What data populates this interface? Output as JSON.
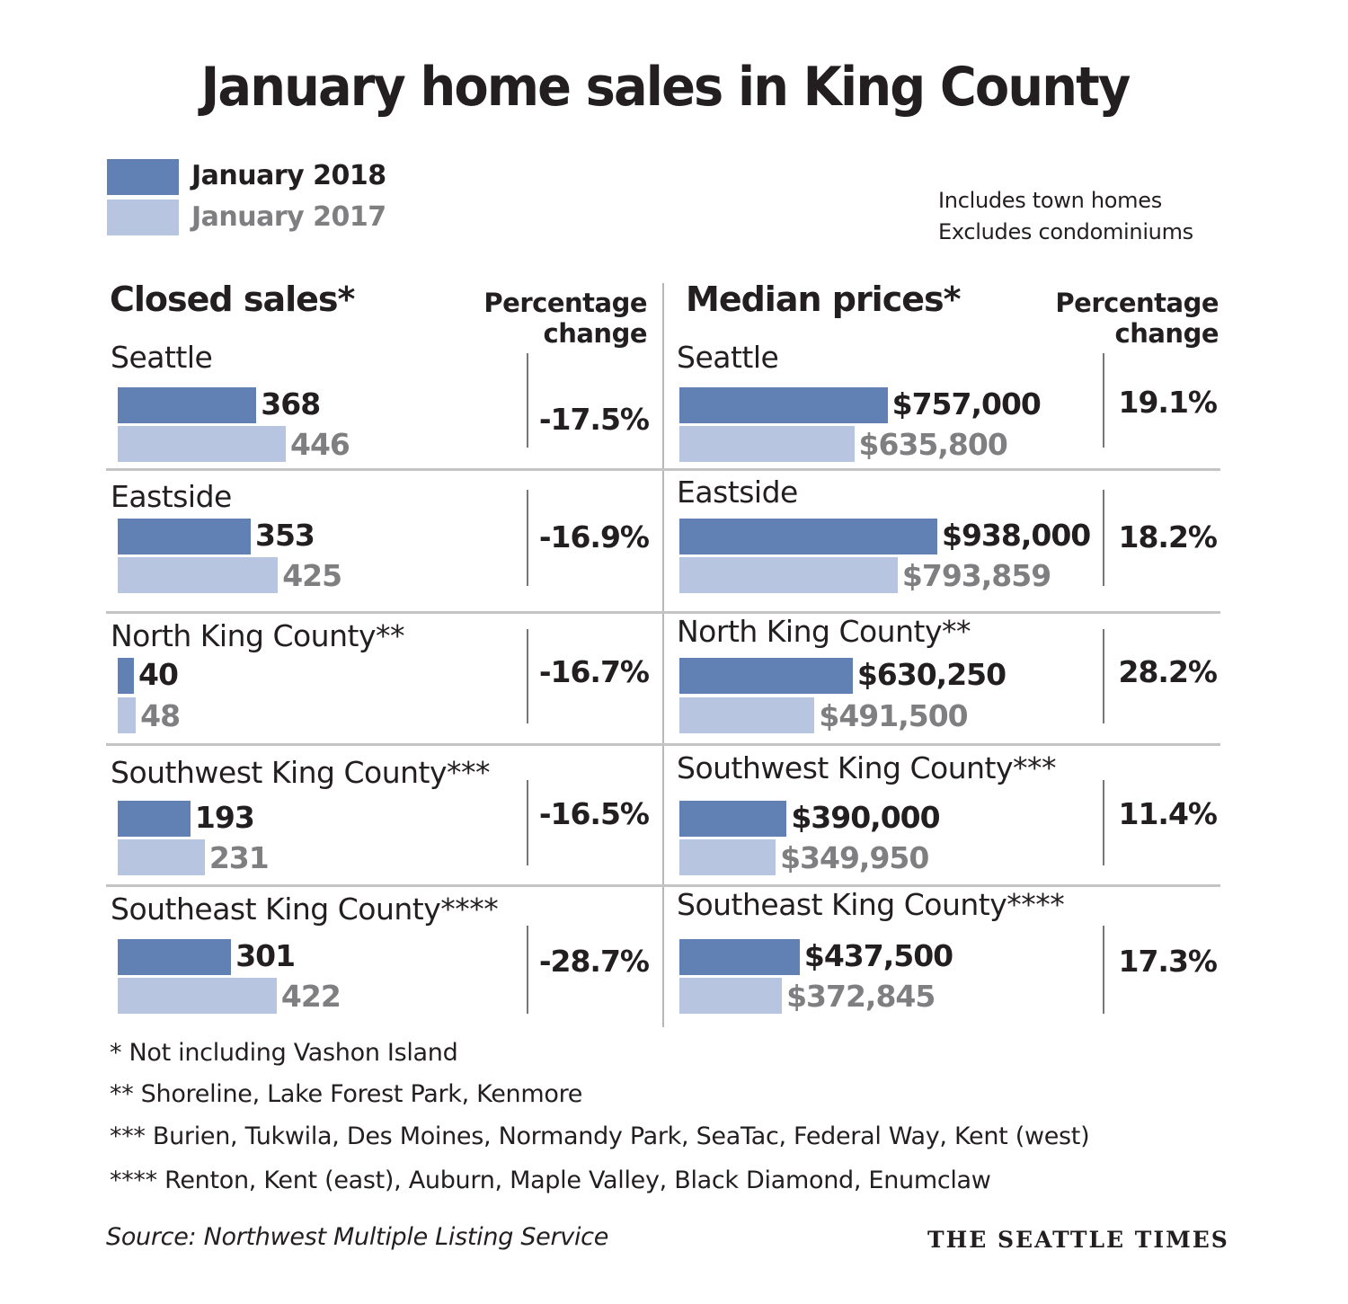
{
  "title": "January home sales in King County",
  "legend": {
    "items": [
      {
        "label": "January 2018",
        "color": "#6180b4"
      },
      {
        "label": "January 2017",
        "color": "#b7c5e1"
      }
    ]
  },
  "notes": [
    "Includes town homes",
    "Excludes condominiums"
  ],
  "panels": {
    "left": {
      "title": "Closed sales*",
      "pct_header_line1": "Percentage",
      "pct_header_line2": "change"
    },
    "right": {
      "title": "Median prices*",
      "pct_header_line1": "Percentage",
      "pct_header_line2": "change"
    }
  },
  "footnotes": [
    "* Not including Vashon Island",
    "**  Shoreline, Lake Forest Park, Kenmore",
    "*** Burien, Tukwila, Des Moines, Normandy Park, SeaTac, Federal Way, Kent (west)",
    "**** Renton, Kent (east), Auburn, Maple Valley, Black Diamond, Enumclaw"
  ],
  "source": "Source: Northwest Multiple Listing Service",
  "brand": "THE SEATTLE TIMES",
  "chart_data": [
    {
      "type": "bar",
      "orientation": "horizontal",
      "title": "Closed sales*",
      "categories": [
        "Seattle",
        "Eastside",
        "North King County**",
        "Southwest King County***",
        "Southeast King County****"
      ],
      "series": [
        {
          "name": "January 2018",
          "color": "#6180b4",
          "values": [
            368,
            353,
            40,
            193,
            301
          ],
          "labels": [
            "368",
            "353",
            "40",
            "193",
            "301"
          ]
        },
        {
          "name": "January 2017",
          "color": "#b7c5e1",
          "values": [
            446,
            425,
            48,
            231,
            422
          ],
          "labels": [
            "446",
            "425",
            "48",
            "231",
            "422"
          ]
        }
      ],
      "percentage_change": [
        "-17.5%",
        "-16.9%",
        "-16.7%",
        "-16.5%",
        "-28.7%"
      ],
      "xlim": [
        0,
        446
      ],
      "legend": "top-left",
      "grid": false
    },
    {
      "type": "bar",
      "orientation": "horizontal",
      "title": "Median prices*",
      "categories": [
        "Seattle",
        "Eastside",
        "North King County**",
        "Southwest King County***",
        "Southeast King County****"
      ],
      "series": [
        {
          "name": "January 2018",
          "color": "#6180b4",
          "values": [
            757000,
            938000,
            630250,
            390000,
            437500
          ],
          "labels": [
            "$757,000",
            "$938,000",
            "$630,250",
            "$390,000",
            "$437,500"
          ]
        },
        {
          "name": "January 2017",
          "color": "#b7c5e1",
          "values": [
            635800,
            793859,
            491500,
            349950,
            372845
          ],
          "labels": [
            "$635,800",
            "$793,859",
            "$491,500",
            "$349,950",
            "$372,845"
          ]
        }
      ],
      "percentage_change": [
        "19.1%",
        "18.2%",
        "28.2%",
        "11.4%",
        "17.3%"
      ],
      "xlim": [
        0,
        938000
      ],
      "legend": "top-left",
      "grid": false
    }
  ]
}
